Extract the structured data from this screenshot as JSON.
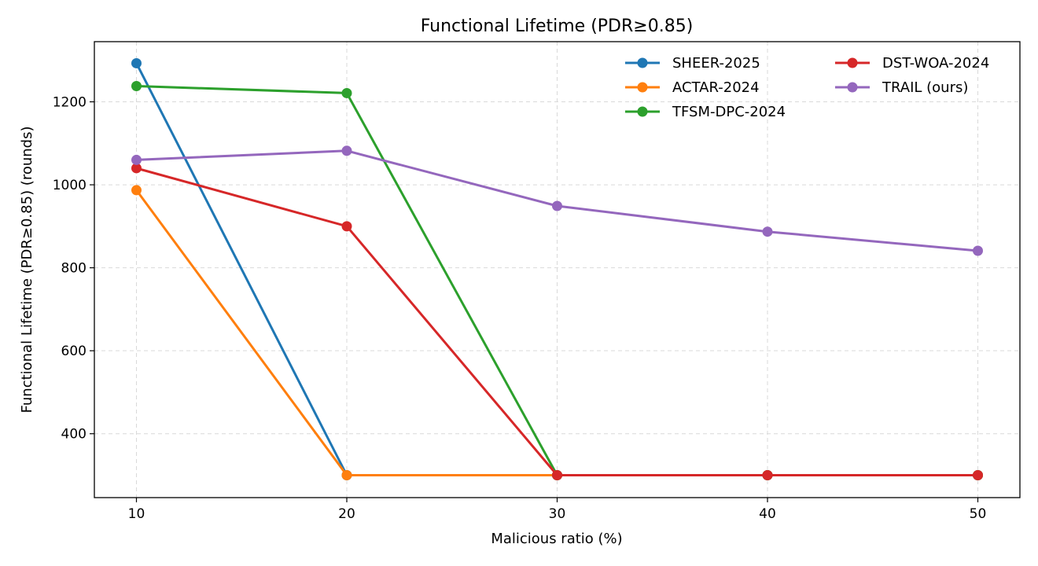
{
  "chart_data": {
    "type": "line",
    "title": "Functional Lifetime (PDR≥0.85)",
    "xlabel": "Malicious ratio (%)",
    "ylabel": "Functional Lifetime (PDR≥0.85) (rounds)",
    "x": [
      10,
      20,
      30,
      40,
      50
    ],
    "xlim": [
      8,
      52
    ],
    "ylim": [
      246,
      1345
    ],
    "xticks": [
      10,
      20,
      30,
      40,
      50
    ],
    "yticks": [
      400,
      600,
      800,
      1000,
      1200
    ],
    "grid": true,
    "legend_position": "top-right",
    "series": [
      {
        "name": "SHEER-2025",
        "color": "#1f77b4",
        "values": [
          1293,
          300,
          300,
          300,
          300
        ]
      },
      {
        "name": "ACTAR-2024",
        "color": "#ff7f0e",
        "values": [
          987,
          300,
          300,
          300,
          300
        ]
      },
      {
        "name": "TFSM-DPC-2024",
        "color": "#2ca02c",
        "values": [
          1238,
          1221,
          300,
          300,
          300
        ]
      },
      {
        "name": "DST-WOA-2024",
        "color": "#d62728",
        "values": [
          1040,
          900,
          300,
          300,
          300
        ]
      },
      {
        "name": "TRAIL (ours)",
        "color": "#9467bd",
        "values": [
          1060,
          1082,
          949,
          887,
          841
        ]
      }
    ]
  }
}
